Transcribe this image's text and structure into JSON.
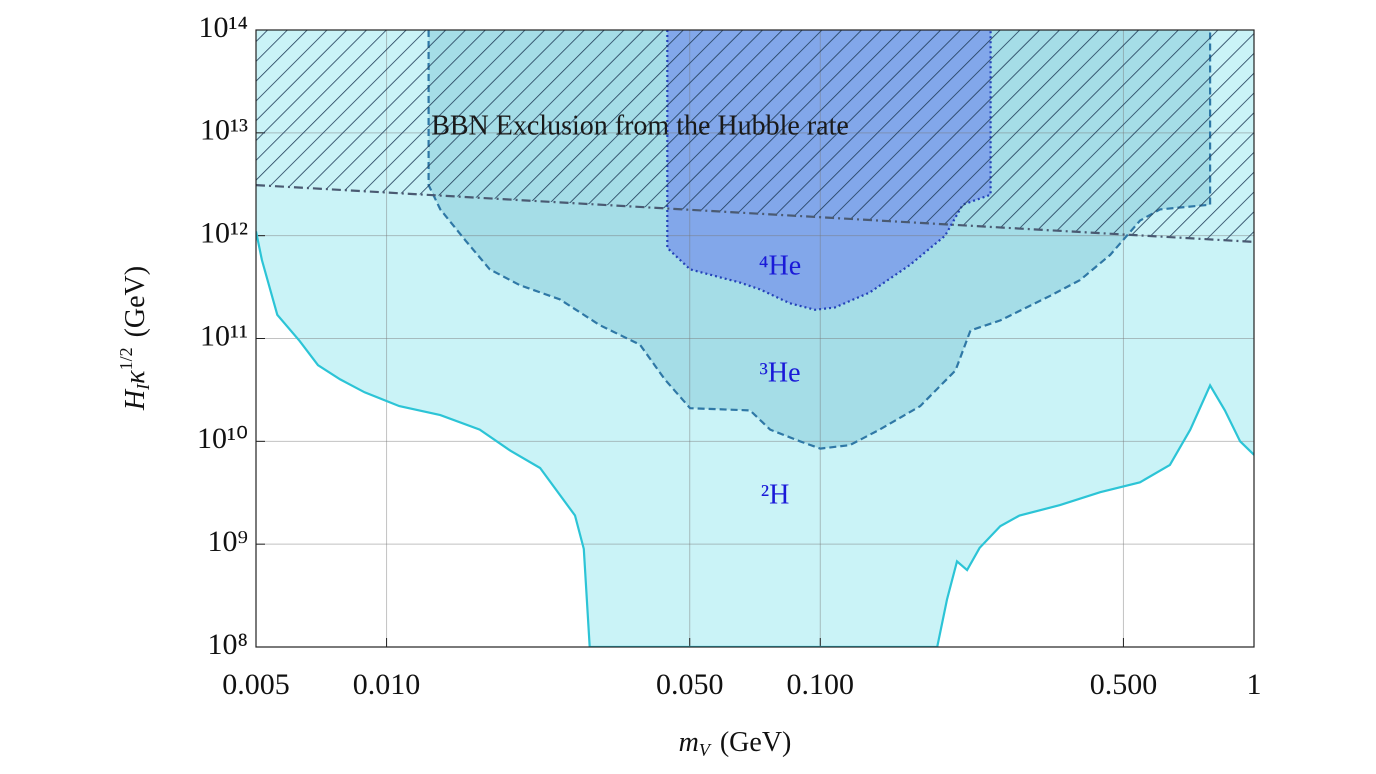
{
  "chart_data": {
    "type": "area",
    "xscale": "log",
    "yscale": "log",
    "grid": true,
    "xlim": [
      0.005,
      1
    ],
    "ylim": [
      100000000.0,
      100000000000000.0
    ],
    "xticks": [
      0.005,
      {
        "value": 0.01,
        "label": "0.010"
      },
      {
        "value": 0.05,
        "label": "0.050"
      },
      {
        "value": 0.1,
        "label": "0.100"
      },
      {
        "value": 0.5,
        "label": "0.500"
      },
      1
    ],
    "yticks": [
      {
        "value": 100000000.0,
        "label": "10⁸"
      },
      {
        "value": 1000000000.0,
        "label": "10⁹"
      },
      {
        "value": 10000000000.0,
        "label": "10¹⁰"
      },
      {
        "value": 100000000000.0,
        "label": "10¹¹"
      },
      {
        "value": 1000000000000.0,
        "label": "10¹²"
      },
      {
        "value": 10000000000000.0,
        "label": "10¹³"
      },
      {
        "value": 100000000000000.0,
        "label": "10¹⁴"
      }
    ],
    "xlabel": {
      "main": "m",
      "sub": "V",
      "unit": "(GeV)"
    },
    "ylabel": {
      "main": "H",
      "sub": "I",
      "main2": "κ",
      "sup": "1/2",
      "unit": "(GeV)"
    },
    "series": [
      {
        "name": "²H",
        "color": "#caf3f7",
        "line_color": "#2cc4d6",
        "dash": "solid",
        "x": [
          0.005,
          0.00516,
          0.0056,
          0.0063,
          0.00695,
          0.00782,
          0.0089,
          0.0107,
          0.0133,
          0.0164,
          0.0193,
          0.0226,
          0.0272,
          0.0285,
          0.0294,
          0.186,
          0.196,
          0.2066,
          0.218,
          0.233,
          0.26,
          0.288,
          0.357,
          0.442,
          0.546,
          0.64,
          0.713,
          0.792,
          0.857,
          0.929,
          1
        ],
        "values": [
          1100000000000.0,
          580000000000.0,
          170000000000.0,
          95000000000.0,
          55000000000.0,
          40000000000.0,
          30000000000.0,
          22000000000.0,
          18000000000.0,
          13000000000.0,
          8100000000.0,
          5500000000.0,
          1900000000.0,
          900000000.0,
          100000000.0,
          100000000.0,
          290000000.0,
          680000000.0,
          560000000.0,
          920000000.0,
          1500000000.0,
          1900000000.0,
          2400000000.0,
          3200000000.0,
          4000000000.0,
          5900000000.0,
          13000000000.0,
          35000000000.0,
          20000000000.0,
          10000000000.0,
          7400000000.0
        ]
      },
      {
        "name": "³He",
        "color": "#a5dde7",
        "line_color": "#2f78a6",
        "dash": "dashed",
        "x": [
          0.0125,
          0.0125,
          0.0133,
          0.0152,
          0.0173,
          0.0203,
          0.0251,
          0.031,
          0.0384,
          0.0438,
          0.0501,
          0.0689,
          0.0766,
          0.0898,
          0.1,
          0.117,
          0.137,
          0.17,
          0.205,
          0.222,
          0.26,
          0.339,
          0.397,
          0.466,
          0.546,
          0.607,
          0.792,
          0.792
        ],
        "values": [
          100000000000000.0,
          3100000000000.0,
          1800000000000.0,
          900000000000.0,
          470000000000.0,
          330000000000.0,
          240000000000.0,
          135000000000.0,
          87000000000.0,
          40000000000.0,
          21000000000.0,
          20000000000.0,
          13000000000.0,
          10000000000.0,
          8500000000.0,
          9200000000.0,
          13000000000.0,
          22000000000.0,
          49000000000.0,
          120000000000.0,
          150000000000.0,
          260000000000.0,
          370000000000.0,
          650000000000.0,
          1400000000000.0,
          1800000000000.0,
          2000000000000.0,
          100000000000000.0
        ]
      },
      {
        "name": "⁴He",
        "color": "#82a7ea",
        "line_color": "#2342b8",
        "dash": "dotted",
        "x": [
          0.0444,
          0.0444,
          0.0501,
          0.0653,
          0.0726,
          0.0851,
          0.0972,
          0.108,
          0.13,
          0.161,
          0.194,
          0.213,
          0.247,
          0.247
        ],
        "values": [
          100000000000000.0,
          760000000000.0,
          470000000000.0,
          350000000000.0,
          300000000000.0,
          220000000000.0,
          190000000000.0,
          200000000000.0,
          280000000000.0,
          520000000000.0,
          1000000000000.0,
          2000000000000.0,
          2500000000000.0,
          100000000000000.0
        ]
      },
      {
        "name": "BBN Exclusion from the Hubble rate",
        "color": "#1f3b58",
        "line_color": "#4a5a72",
        "dash": "dashdot",
        "hatch": true,
        "x": [
          0.005,
          1
        ],
        "values": [
          3100000000000.0,
          870000000000.0
        ]
      }
    ]
  }
}
